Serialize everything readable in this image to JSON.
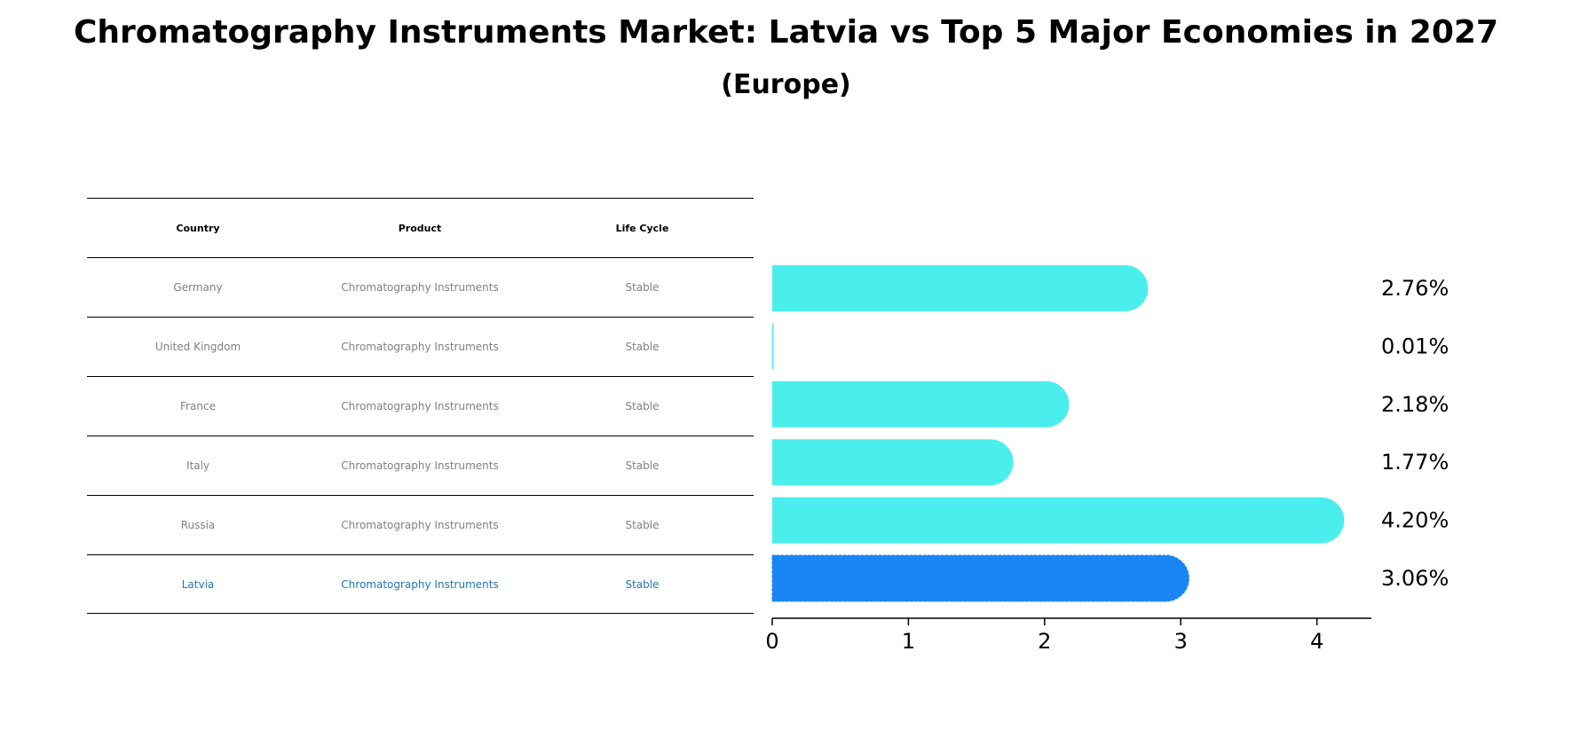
{
  "title": "Chromatography Instruments Market: Latvia vs Top 5 Major Economies in 2027",
  "subtitle": "(Europe)",
  "table": {
    "headers": [
      "Country",
      "Product",
      "Life Cycle"
    ],
    "rows": [
      {
        "country": "Germany",
        "product": "Chromatography Instruments",
        "life_cycle": "Stable"
      },
      {
        "country": "United Kingdom",
        "product": "Chromatography Instruments",
        "life_cycle": "Stable"
      },
      {
        "country": "France",
        "product": "Chromatography Instruments",
        "life_cycle": "Stable"
      },
      {
        "country": "Italy",
        "product": "Chromatography Instruments",
        "life_cycle": "Stable"
      },
      {
        "country": "Russia",
        "product": "Chromatography Instruments",
        "life_cycle": "Stable"
      },
      {
        "country": "Latvia",
        "product": "Chromatography Instruments",
        "life_cycle": "Stable"
      }
    ]
  },
  "chart_data": {
    "type": "bar",
    "orientation": "horizontal",
    "categories": [
      "Germany",
      "United Kingdom",
      "France",
      "Italy",
      "Russia",
      "Latvia"
    ],
    "values": [
      2.76,
      0.01,
      2.18,
      1.77,
      4.2,
      3.06
    ],
    "value_labels": [
      "2.76%",
      "0.01%",
      "2.18%",
      "1.77%",
      "4.20%",
      "3.06%"
    ],
    "xticks": [
      0,
      1,
      2,
      3,
      4
    ],
    "xlim": [
      0,
      4.4
    ],
    "highlight": "Latvia",
    "colors": {
      "default": "#4aeeec",
      "highlight": "#1a86f5",
      "highlight_table_text": "#1f77b4",
      "table_text": "#808080"
    }
  }
}
